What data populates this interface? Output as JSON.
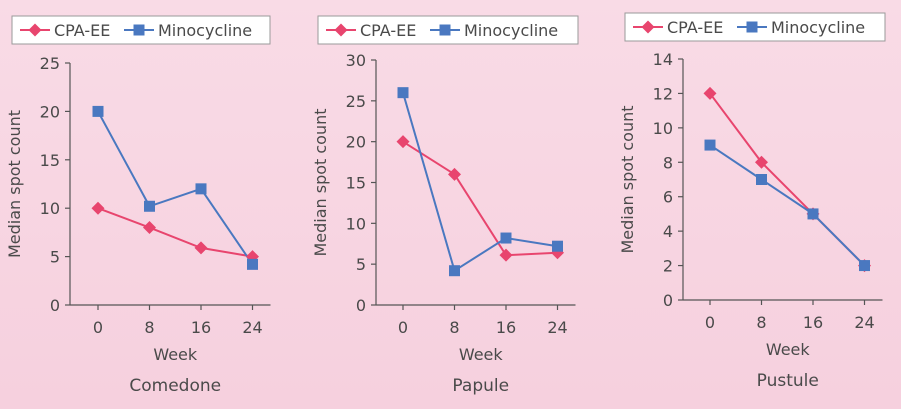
{
  "chart_data": [
    {
      "type": "line",
      "caption": "Comedone",
      "xlabel": "Week",
      "ylabel": "Median spot count",
      "categories": [
        "0",
        "8",
        "16",
        "24"
      ],
      "yticks": [
        "0",
        "5",
        "10",
        "15",
        "20",
        "25"
      ],
      "ylim": [
        0,
        25
      ],
      "legend_position": "top",
      "series": [
        {
          "name": "CPA-EE",
          "marker": "diamond",
          "color": "#e8456e",
          "values": [
            10,
            8,
            5.9,
            5
          ]
        },
        {
          "name": "Minocycline",
          "marker": "square",
          "color": "#4a78c0",
          "values": [
            20,
            10.2,
            12,
            4.2
          ]
        }
      ]
    },
    {
      "type": "line",
      "caption": "Papule",
      "xlabel": "Week",
      "ylabel": "Median spot count",
      "categories": [
        "0",
        "8",
        "16",
        "24"
      ],
      "yticks": [
        "0",
        "5",
        "10",
        "15",
        "20",
        "25",
        "30"
      ],
      "ylim": [
        0,
        30
      ],
      "legend_position": "top",
      "series": [
        {
          "name": "CPA-EE",
          "marker": "diamond",
          "color": "#e8456e",
          "values": [
            20,
            16,
            6.1,
            6.4
          ]
        },
        {
          "name": "Minocycline",
          "marker": "square",
          "color": "#4a78c0",
          "values": [
            26,
            4.2,
            8.2,
            7.2
          ]
        }
      ]
    },
    {
      "type": "line",
      "caption": "Pustule",
      "xlabel": "Week",
      "ylabel": "Median spot count",
      "categories": [
        "0",
        "8",
        "16",
        "24"
      ],
      "yticks": [
        "0",
        "2",
        "4",
        "6",
        "8",
        "10",
        "12",
        "14"
      ],
      "ylim": [
        0,
        14
      ],
      "legend_position": "top",
      "series": [
        {
          "name": "CPA-EE",
          "marker": "diamond",
          "color": "#e8456e",
          "values": [
            12,
            8,
            5,
            2
          ]
        },
        {
          "name": "Minocycline",
          "marker": "square",
          "color": "#4a78c0",
          "values": [
            9,
            7,
            5,
            2
          ]
        }
      ]
    }
  ]
}
